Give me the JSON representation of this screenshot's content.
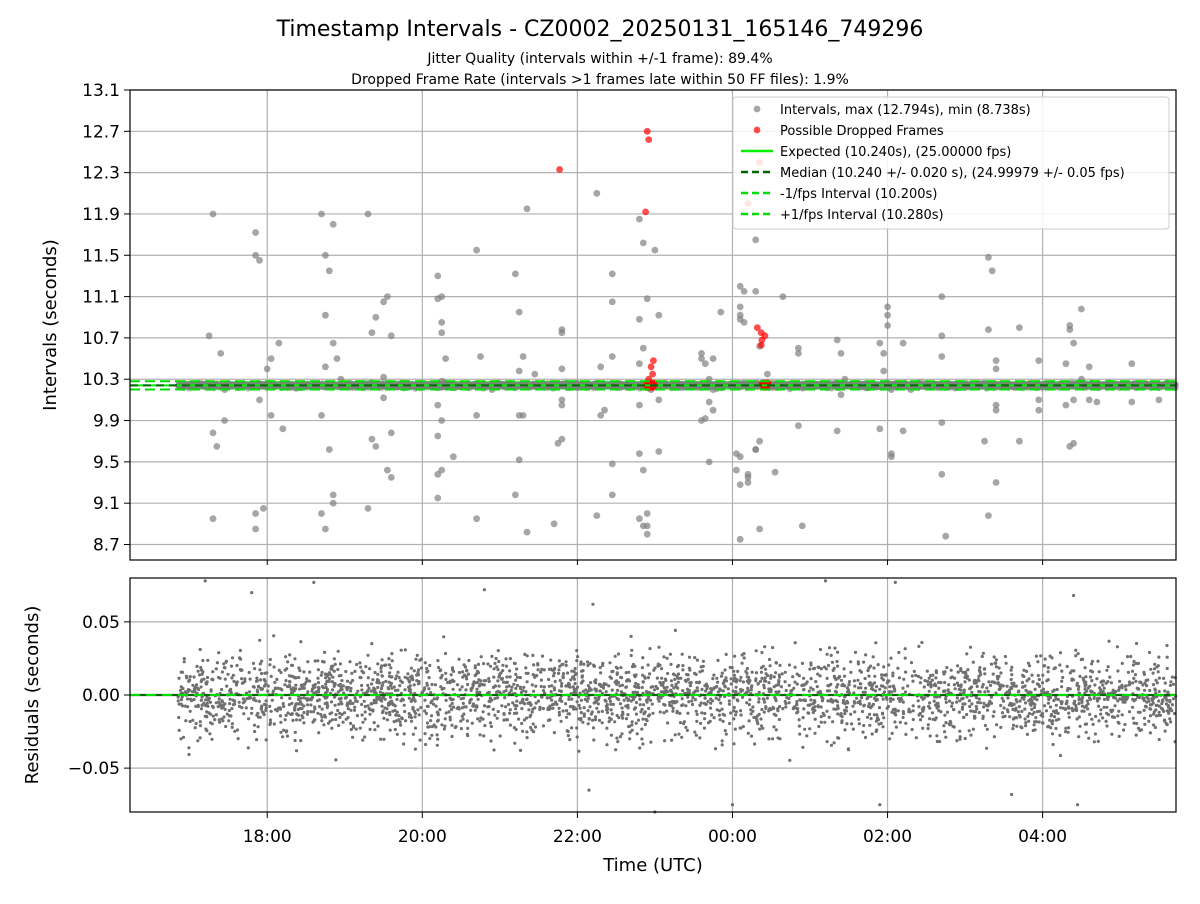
{
  "title": "Timestamp Intervals - CZ0002_20250131_165146_749296",
  "subtitle_line1": "Jitter Quality (intervals within +/-1 frame): 89.4%",
  "subtitle_line2": "Dropped Frame Rate (intervals >1 frames late within 50 FF files): 1.9%",
  "colors": {
    "intervals": "#808080",
    "dropped": "#ff0000",
    "expected": "#00ee00",
    "median": "#006400",
    "band": "#00dd00",
    "residuals": "#707070",
    "grid": "#b0b0b0"
  },
  "chart_data": [
    {
      "type": "scatter",
      "panel": "top",
      "ylabel": "Intervals (seconds)",
      "xlabel": "",
      "ylim": [
        8.55,
        13.1
      ],
      "yticks": [
        "8.7",
        "9.1",
        "9.5",
        "9.9",
        "10.3",
        "10.7",
        "11.1",
        "11.5",
        "11.9",
        "12.3",
        "12.7",
        "13.1"
      ],
      "grid": true,
      "legend_placement": "top-right",
      "legend": [
        {
          "label": "Intervals, max (12.794s), min (8.738s)",
          "style": "dot-grey"
        },
        {
          "label": "Possible Dropped Frames",
          "style": "dot-red"
        },
        {
          "label": "Expected (10.240s), (25.00000 fps)",
          "style": "line-expected"
        },
        {
          "label": "Median (10.240 +/- 0.020 s), (24.99979 +/- 0.05 fps)",
          "style": "dash-median"
        },
        {
          "label": "-1/fps Interval (10.200s)",
          "style": "dash-band"
        },
        {
          "label": "+1/fps Interval (10.280s)",
          "style": "dash-band"
        }
      ],
      "reference_lines": {
        "expected": 10.24,
        "median": 10.24,
        "lower": 10.2,
        "upper": 10.28
      },
      "time_range_hours": [
        16.23,
        29.72
      ],
      "data_start_hour": 16.85,
      "dense_band": {
        "center": 10.24,
        "halfwidth": 0.045,
        "count": 2200
      },
      "outliers": [
        [
          17.3,
          11.9
        ],
        [
          17.25,
          10.72
        ],
        [
          17.4,
          10.55
        ],
        [
          17.45,
          10.2
        ],
        [
          17.35,
          9.65
        ],
        [
          17.3,
          9.78
        ],
        [
          17.3,
          8.95
        ],
        [
          17.45,
          9.9
        ],
        [
          17.85,
          11.72
        ],
        [
          17.85,
          11.5
        ],
        [
          17.9,
          11.45
        ],
        [
          17.85,
          9.0
        ],
        [
          17.85,
          8.85
        ],
        [
          17.95,
          9.05
        ],
        [
          18.05,
          10.5
        ],
        [
          18.0,
          10.4
        ],
        [
          18.05,
          9.95
        ],
        [
          18.2,
          9.82
        ],
        [
          18.15,
          10.65
        ],
        [
          17.9,
          10.1
        ],
        [
          18.7,
          11.9
        ],
        [
          18.75,
          11.5
        ],
        [
          18.8,
          11.35
        ],
        [
          18.85,
          11.8
        ],
        [
          18.75,
          10.92
        ],
        [
          18.85,
          10.65
        ],
        [
          18.9,
          10.5
        ],
        [
          18.75,
          10.42
        ],
        [
          18.7,
          9.95
        ],
        [
          18.8,
          9.62
        ],
        [
          18.85,
          9.18
        ],
        [
          18.85,
          9.1
        ],
        [
          18.75,
          8.85
        ],
        [
          18.7,
          9.0
        ],
        [
          18.95,
          10.3
        ],
        [
          19.3,
          11.9
        ],
        [
          19.35,
          10.75
        ],
        [
          19.4,
          10.9
        ],
        [
          19.55,
          11.1
        ],
        [
          19.5,
          11.05
        ],
        [
          19.6,
          10.72
        ],
        [
          19.5,
          10.32
        ],
        [
          19.35,
          9.72
        ],
        [
          19.4,
          9.65
        ],
        [
          19.55,
          9.42
        ],
        [
          19.6,
          9.35
        ],
        [
          19.6,
          9.78
        ],
        [
          19.3,
          9.05
        ],
        [
          19.5,
          10.12
        ],
        [
          20.2,
          11.3
        ],
        [
          20.2,
          11.08
        ],
        [
          20.25,
          11.1
        ],
        [
          20.25,
          10.85
        ],
        [
          20.25,
          10.75
        ],
        [
          20.3,
          10.5
        ],
        [
          20.25,
          10.28
        ],
        [
          20.2,
          10.05
        ],
        [
          20.25,
          9.9
        ],
        [
          20.2,
          9.75
        ],
        [
          20.25,
          9.42
        ],
        [
          20.2,
          9.38
        ],
        [
          20.2,
          9.15
        ],
        [
          20.4,
          9.55
        ],
        [
          20.7,
          11.55
        ],
        [
          20.75,
          10.52
        ],
        [
          20.7,
          9.95
        ],
        [
          20.7,
          8.95
        ],
        [
          20.9,
          10.2
        ],
        [
          21.2,
          11.32
        ],
        [
          21.25,
          10.95
        ],
        [
          21.3,
          10.52
        ],
        [
          21.25,
          10.38
        ],
        [
          21.25,
          9.95
        ],
        [
          21.3,
          9.95
        ],
        [
          21.25,
          9.52
        ],
        [
          21.2,
          9.18
        ],
        [
          21.35,
          11.95
        ],
        [
          21.35,
          8.82
        ],
        [
          21.45,
          10.35
        ],
        [
          21.8,
          10.78
        ],
        [
          21.8,
          10.75
        ],
        [
          21.8,
          10.4
        ],
        [
          21.8,
          10.1
        ],
        [
          21.8,
          10.05
        ],
        [
          21.8,
          9.72
        ],
        [
          21.75,
          9.68
        ],
        [
          21.7,
          8.9
        ],
        [
          22.25,
          12.1
        ],
        [
          22.3,
          10.42
        ],
        [
          22.35,
          10.0
        ],
        [
          22.3,
          9.95
        ],
        [
          22.25,
          8.98
        ],
        [
          22.45,
          11.32
        ],
        [
          22.45,
          11.05
        ],
        [
          22.45,
          10.52
        ],
        [
          22.45,
          9.48
        ],
        [
          22.45,
          9.18
        ],
        [
          22.8,
          11.85
        ],
        [
          22.85,
          11.62
        ],
        [
          22.8,
          10.88
        ],
        [
          22.8,
          10.45
        ],
        [
          22.8,
          10.05
        ],
        [
          22.8,
          9.58
        ],
        [
          22.8,
          8.95
        ],
        [
          22.85,
          8.88
        ],
        [
          22.9,
          11.08
        ],
        [
          22.85,
          10.6
        ],
        [
          22.85,
          9.42
        ],
        [
          22.9,
          9.0
        ],
        [
          22.9,
          8.88
        ],
        [
          22.9,
          8.8
        ],
        [
          23.0,
          11.55
        ],
        [
          23.05,
          10.92
        ],
        [
          23.05,
          10.1
        ],
        [
          23.05,
          9.6
        ],
        [
          22.95,
          10.2
        ],
        [
          23.6,
          10.55
        ],
        [
          23.6,
          10.5
        ],
        [
          23.65,
          10.45
        ],
        [
          23.6,
          9.9
        ],
        [
          23.65,
          9.92
        ],
        [
          23.7,
          10.3
        ],
        [
          23.7,
          10.08
        ],
        [
          23.75,
          10.5
        ],
        [
          23.75,
          10.2
        ],
        [
          23.7,
          9.5
        ],
        [
          23.75,
          10.0
        ],
        [
          23.85,
          10.95
        ],
        [
          24.1,
          11.2
        ],
        [
          24.15,
          11.15
        ],
        [
          24.1,
          11.0
        ],
        [
          24.1,
          10.92
        ],
        [
          24.1,
          10.88
        ],
        [
          24.15,
          10.85
        ],
        [
          24.05,
          9.58
        ],
        [
          24.1,
          9.55
        ],
        [
          24.05,
          9.42
        ],
        [
          24.1,
          9.28
        ],
        [
          24.2,
          9.35
        ],
        [
          24.2,
          9.38
        ],
        [
          24.1,
          8.75
        ],
        [
          24.3,
          11.65
        ],
        [
          24.3,
          11.15
        ],
        [
          24.35,
          10.62
        ],
        [
          24.3,
          9.62
        ],
        [
          24.3,
          9.62
        ],
        [
          24.35,
          9.7
        ],
        [
          24.35,
          8.85
        ],
        [
          24.2,
          9.3
        ],
        [
          24.45,
          10.35
        ],
        [
          24.55,
          9.4
        ],
        [
          24.65,
          11.1
        ],
        [
          24.85,
          10.6
        ],
        [
          24.85,
          10.55
        ],
        [
          24.85,
          9.85
        ],
        [
          24.9,
          8.88
        ],
        [
          24.9,
          10.22
        ],
        [
          25.35,
          10.68
        ],
        [
          25.4,
          10.55
        ],
        [
          25.45,
          10.3
        ],
        [
          25.4,
          10.15
        ],
        [
          25.35,
          9.8
        ],
        [
          25.9,
          10.65
        ],
        [
          25.95,
          10.55
        ],
        [
          25.95,
          10.38
        ],
        [
          25.9,
          9.82
        ],
        [
          26.0,
          11.0
        ],
        [
          26.0,
          10.92
        ],
        [
          26.0,
          10.82
        ],
        [
          26.05,
          10.2
        ],
        [
          26.05,
          9.58
        ],
        [
          26.05,
          9.55
        ],
        [
          26.2,
          10.65
        ],
        [
          26.2,
          9.8
        ],
        [
          26.3,
          10.2
        ],
        [
          26.7,
          11.1
        ],
        [
          26.7,
          10.72
        ],
        [
          26.7,
          10.52
        ],
        [
          26.7,
          9.88
        ],
        [
          26.7,
          9.38
        ],
        [
          26.75,
          8.78
        ],
        [
          27.3,
          11.48
        ],
        [
          27.3,
          10.78
        ],
        [
          27.25,
          9.7
        ],
        [
          27.3,
          8.98
        ],
        [
          27.35,
          11.35
        ],
        [
          27.4,
          10.48
        ],
        [
          27.4,
          10.4
        ],
        [
          27.4,
          10.05
        ],
        [
          27.4,
          10.0
        ],
        [
          27.4,
          9.3
        ],
        [
          27.7,
          10.8
        ],
        [
          27.7,
          9.7
        ],
        [
          27.95,
          10.48
        ],
        [
          27.95,
          10.1
        ],
        [
          27.95,
          10.0
        ],
        [
          28.35,
          10.82
        ],
        [
          28.35,
          10.78
        ],
        [
          28.4,
          10.65
        ],
        [
          28.4,
          9.68
        ],
        [
          28.35,
          9.65
        ],
        [
          28.3,
          10.45
        ],
        [
          28.3,
          10.05
        ],
        [
          28.4,
          10.1
        ],
        [
          28.5,
          10.98
        ],
        [
          28.5,
          10.3
        ],
        [
          28.6,
          10.42
        ],
        [
          28.6,
          10.1
        ],
        [
          28.7,
          10.08
        ],
        [
          29.15,
          10.45
        ],
        [
          29.15,
          10.08
        ],
        [
          29.5,
          10.1
        ]
      ],
      "dropped_frames": [
        [
          21.77,
          12.33
        ],
        [
          22.9,
          12.7
        ],
        [
          22.92,
          12.62
        ],
        [
          22.88,
          11.92
        ],
        [
          22.98,
          10.48
        ],
        [
          22.95,
          10.42
        ],
        [
          22.97,
          10.35
        ],
        [
          22.92,
          10.3
        ],
        [
          24.35,
          12.4
        ],
        [
          24.2,
          12.0
        ],
        [
          24.32,
          10.8
        ],
        [
          24.37,
          10.75
        ],
        [
          24.42,
          10.72
        ],
        [
          24.38,
          10.68
        ],
        [
          24.37,
          10.63
        ]
      ],
      "dropped_clusters": [
        [
          22.94,
          10.24,
          0.09,
          26
        ],
        [
          24.42,
          10.24,
          0.08,
          20
        ]
      ]
    },
    {
      "type": "scatter",
      "panel": "bottom",
      "ylabel": "Residuals (seconds)",
      "xlabel": "Time (UTC)",
      "ylim": [
        -0.08,
        0.08
      ],
      "yticks": [
        {
          "value": 0.05,
          "label": "0.05"
        },
        {
          "value": 0.0,
          "label": "0.00"
        },
        {
          "value": -0.05,
          "label": "−0.05"
        }
      ],
      "xticks": [
        {
          "hour": 18,
          "label": "18:00"
        },
        {
          "hour": 20,
          "label": "20:00"
        },
        {
          "hour": 22,
          "label": "22:00"
        },
        {
          "hour": 24,
          "label": "00:00"
        },
        {
          "hour": 26,
          "label": "02:00"
        },
        {
          "hour": 28,
          "label": "04:00"
        }
      ],
      "grid": true,
      "reference_line": 0.0,
      "residual_std": 0.022,
      "count": 3200,
      "extremes": [
        [
          17.2,
          0.078
        ],
        [
          17.8,
          0.07
        ],
        [
          18.6,
          0.077
        ],
        [
          20.8,
          0.072
        ],
        [
          22.2,
          0.062
        ],
        [
          24.0,
          -0.075
        ],
        [
          25.2,
          0.078
        ],
        [
          26.1,
          0.077
        ],
        [
          27.6,
          -0.068
        ],
        [
          28.4,
          0.068
        ],
        [
          28.45,
          -0.075
        ],
        [
          25.9,
          -0.075
        ],
        [
          23.0,
          -0.08
        ],
        [
          22.15,
          -0.065
        ]
      ]
    }
  ]
}
